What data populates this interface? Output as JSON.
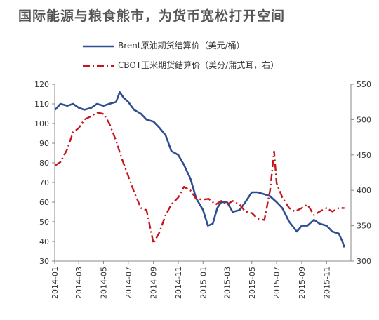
{
  "title": "国际能源与粮食熊市，为货币宽松打开空间",
  "chart_data": {
    "type": "line",
    "title": "国际能源与粮食熊市，为货币宽松打开空间",
    "grid": false,
    "legend_position": "top-left",
    "x_ticks": [
      "2014-01",
      "2014-03",
      "2014-05",
      "2014-07",
      "2014-09",
      "2014-11",
      "2015-01",
      "2015-03",
      "2015-05",
      "2015-07",
      "2015-09",
      "2015-11"
    ],
    "y_left": {
      "ticks": [
        "30",
        "40",
        "50",
        "60",
        "70",
        "80",
        "90",
        "100",
        "110",
        "120"
      ],
      "range": [
        30,
        120
      ]
    },
    "y_right": {
      "ticks": [
        "300",
        "350",
        "400",
        "450",
        "500",
        "550"
      ],
      "range": [
        300,
        550
      ]
    },
    "series": [
      {
        "name": "Brent原油期货结算价（美元/桶）",
        "axis": "left",
        "style": "solid",
        "color": "#2f4e8f",
        "x": [
          "2014-01-02",
          "2014-01-15",
          "2014-02-01",
          "2014-02-15",
          "2014-03-01",
          "2014-03-15",
          "2014-04-01",
          "2014-04-15",
          "2014-05-01",
          "2014-05-15",
          "2014-06-01",
          "2014-06-10",
          "2014-06-20",
          "2014-07-01",
          "2014-07-15",
          "2014-08-01",
          "2014-08-15",
          "2014-09-01",
          "2014-09-15",
          "2014-10-01",
          "2014-10-15",
          "2014-11-01",
          "2014-11-15",
          "2014-12-01",
          "2014-12-15",
          "2015-01-01",
          "2015-01-13",
          "2015-01-25",
          "2015-02-05",
          "2015-02-15",
          "2015-03-01",
          "2015-03-15",
          "2015-04-01",
          "2015-04-15",
          "2015-05-01",
          "2015-05-15",
          "2015-06-01",
          "2015-06-15",
          "2015-07-01",
          "2015-07-15",
          "2015-08-01",
          "2015-08-20",
          "2015-09-01",
          "2015-09-15",
          "2015-10-01",
          "2015-10-15",
          "2015-11-01",
          "2015-11-15",
          "2015-12-01",
          "2015-12-10",
          "2015-12-15"
        ],
        "values": [
          107,
          110,
          109,
          110,
          108,
          107,
          108,
          110,
          109,
          110,
          111,
          116,
          113,
          111,
          107,
          105,
          102,
          101,
          98,
          94,
          86,
          84,
          79,
          72,
          62,
          56,
          48,
          49,
          57,
          60,
          60,
          55,
          56,
          60,
          65,
          65,
          64,
          63,
          60,
          57,
          50,
          45,
          48,
          48,
          51,
          49,
          48,
          45,
          44,
          40,
          37
        ]
      },
      {
        "name": "CBOT玉米期货结算价（美分/蒲式耳，右）",
        "axis": "right",
        "style": "dashdot",
        "color": "#c4161c",
        "x": [
          "2014-01-02",
          "2014-01-15",
          "2014-02-01",
          "2014-02-15",
          "2014-03-01",
          "2014-03-15",
          "2014-04-01",
          "2014-04-15",
          "2014-05-01",
          "2014-05-15",
          "2014-06-01",
          "2014-06-15",
          "2014-07-01",
          "2014-07-15",
          "2014-08-01",
          "2014-08-15",
          "2014-09-01",
          "2014-09-15",
          "2014-10-01",
          "2014-10-15",
          "2014-11-01",
          "2014-11-15",
          "2014-12-01",
          "2014-12-15",
          "2015-01-01",
          "2015-01-15",
          "2015-02-01",
          "2015-02-15",
          "2015-03-01",
          "2015-03-15",
          "2015-04-01",
          "2015-04-15",
          "2015-05-01",
          "2015-05-15",
          "2015-06-01",
          "2015-06-15",
          "2015-06-25",
          "2015-07-01",
          "2015-07-15",
          "2015-08-01",
          "2015-08-15",
          "2015-09-01",
          "2015-09-15",
          "2015-10-01",
          "2015-10-15",
          "2015-11-01",
          "2015-11-15",
          "2015-12-01",
          "2015-12-15"
        ],
        "values": [
          435,
          440,
          458,
          482,
          488,
          500,
          505,
          510,
          508,
          495,
          470,
          445,
          420,
          398,
          375,
          372,
          325,
          340,
          365,
          380,
          390,
          405,
          400,
          388,
          387,
          388,
          380,
          385,
          380,
          385,
          380,
          370,
          368,
          360,
          358,
          400,
          455,
          410,
          390,
          375,
          370,
          375,
          380,
          365,
          370,
          375,
          370,
          375,
          375
        ]
      }
    ]
  }
}
